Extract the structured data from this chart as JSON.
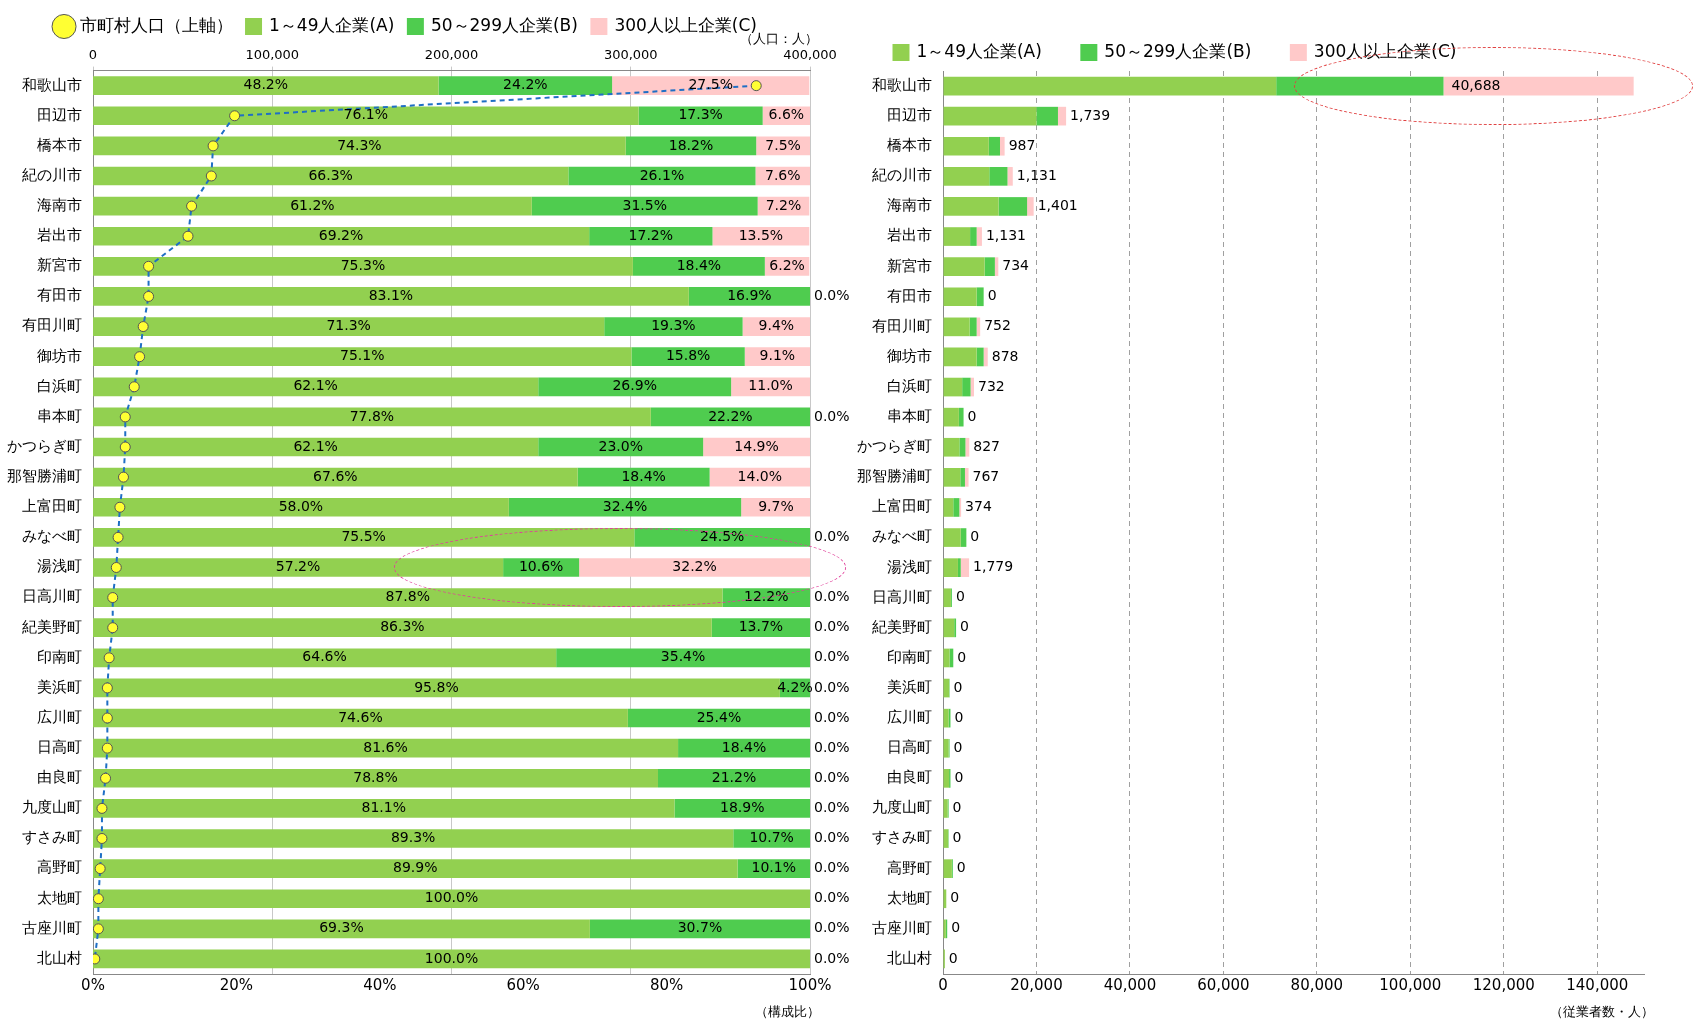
{
  "chart_data": [
    {
      "type": "bar",
      "orientation": "horizontal",
      "stacked": true,
      "categories": [
        "和歌山市",
        "田辺市",
        "橋本市",
        "紀の川市",
        "海南市",
        "岩出市",
        "新宮市",
        "有田市",
        "有田川町",
        "御坊市",
        "白浜町",
        "串本町",
        "かつらぎ町",
        "那智勝浦町",
        "上富田町",
        "みなべ町",
        "湯浅町",
        "日高川町",
        "紀美野町",
        "印南町",
        "美浜町",
        "広川町",
        "日高町",
        "由良町",
        "九度山町",
        "すさみ町",
        "高野町",
        "太地町",
        "古座川町",
        "北山村"
      ],
      "series": [
        {
          "name": "1～49人企業(A)",
          "color": "#92d050",
          "values": [
            48.2,
            76.1,
            74.3,
            66.3,
            61.2,
            69.2,
            75.3,
            83.1,
            71.3,
            75.1,
            62.1,
            77.8,
            62.1,
            67.6,
            58.0,
            75.5,
            57.2,
            87.8,
            86.3,
            64.6,
            95.8,
            74.6,
            81.6,
            78.8,
            81.1,
            89.3,
            89.9,
            100.0,
            69.3,
            100.0
          ],
          "value_labels": [
            "48.2%",
            "76.1%",
            "74.3%",
            "66.3%",
            "61.2%",
            "69.2%",
            "75.3%",
            "83.1%",
            "71.3%",
            "75.1%",
            "62.1%",
            "77.8%",
            "62.1%",
            "67.6%",
            "58.0%",
            "75.5%",
            "57.2%",
            "87.8%",
            "86.3%",
            "64.6%",
            "95.8%",
            "74.6%",
            "81.6%",
            "78.8%",
            "81.1%",
            "89.3%",
            "89.9%",
            "100.0%",
            "69.3%",
            "100.0%"
          ]
        },
        {
          "name": "50～299人企業(B)",
          "color": "#4fcc4f",
          "values": [
            24.2,
            17.3,
            18.2,
            26.1,
            31.5,
            17.2,
            18.4,
            16.9,
            19.3,
            15.8,
            26.9,
            22.2,
            23.0,
            18.4,
            32.4,
            24.5,
            10.6,
            12.2,
            13.7,
            35.4,
            4.2,
            25.4,
            18.4,
            21.2,
            18.9,
            10.7,
            10.1,
            0.0,
            30.7,
            0.0
          ],
          "value_labels": [
            "24.2%",
            "17.3%",
            "18.2%",
            "26.1%",
            "31.5%",
            "17.2%",
            "18.4%",
            "16.9%",
            "19.3%",
            "15.8%",
            "26.9%",
            "22.2%",
            "23.0%",
            "18.4%",
            "32.4%",
            "24.5%",
            "10.6%",
            "12.2%",
            "13.7%",
            "35.4%",
            "4.2%",
            "25.4%",
            "18.4%",
            "21.2%",
            "18.9%",
            "10.7%",
            "10.1%",
            null,
            "30.7%",
            null
          ]
        },
        {
          "name": "300人以上企業(C)",
          "color": "#ffc9c9",
          "values": [
            27.5,
            6.6,
            7.5,
            7.6,
            7.2,
            13.5,
            6.2,
            0.0,
            9.4,
            9.1,
            11.0,
            0.0,
            14.9,
            14.0,
            9.7,
            0.0,
            32.2,
            0.0,
            0.0,
            0.0,
            0.0,
            0.0,
            0.0,
            0.0,
            0.0,
            0.0,
            0.0,
            0.0,
            0.0,
            0.0
          ],
          "value_labels": [
            "27.5%",
            "6.6%",
            "7.5%",
            "7.6%",
            "7.2%",
            "13.5%",
            "6.2%",
            "0.0%",
            "9.4%",
            "9.1%",
            "11.0%",
            "0.0%",
            "14.9%",
            "14.0%",
            "9.7%",
            "0.0%",
            "32.2%",
            "0.0%",
            "0.0%",
            "0.0%",
            "0.0%",
            "0.0%",
            "0.0%",
            "0.0%",
            "0.0%",
            "0.0%",
            "0.0%",
            "0.0%",
            "0.0%",
            "0.0%"
          ]
        },
        {
          "name": "市町村人口（上軸）",
          "type": "line",
          "axis": "x2",
          "color": "#1f6fc5",
          "marker": "circle",
          "line_style": "dashed",
          "values": [
            370000,
            79000,
            67000,
            66000,
            55000,
            53000,
            31000,
            31000,
            28000,
            26000,
            23000,
            18000,
            18000,
            17000,
            15000,
            14000,
            13000,
            11000,
            11000,
            9000,
            8000,
            8000,
            8000,
            7000,
            5000,
            5000,
            4000,
            3000,
            3000,
            1000
          ]
        }
      ],
      "xlim": [
        0,
        100
      ],
      "xticks": [
        {
          "value": 0,
          "label": "0%"
        },
        {
          "value": 20,
          "label": "20%"
        },
        {
          "value": 40,
          "label": "40%"
        },
        {
          "value": 60,
          "label": "60%"
        },
        {
          "value": 80,
          "label": "80%"
        },
        {
          "value": 100,
          "label": "100%"
        }
      ],
      "x2lim": [
        0,
        400000
      ],
      "x2ticks": [
        0,
        {
          "value": 100000,
          "label": "100,000"
        },
        {
          "value": 200000,
          "label": "200,000"
        },
        {
          "value": 300000,
          "label": "300,000"
        },
        {
          "value": 400000,
          "label": "400,000"
        }
      ],
      "grid": "x2",
      "legend": "top",
      "annotations": [
        "（人口：人）",
        "（構成比）"
      ]
    },
    {
      "type": "bar",
      "orientation": "horizontal",
      "stacked": true,
      "categories": [
        "和歌山市",
        "田辺市",
        "橋本市",
        "紀の川市",
        "海南市",
        "岩出市",
        "新宮市",
        "有田市",
        "有田川町",
        "御坊市",
        "白浜町",
        "串本町",
        "かつらぎ町",
        "那智勝浦町",
        "上富田町",
        "みなべ町",
        "湯浅町",
        "日高川町",
        "紀美野町",
        "印南町",
        "美浜町",
        "広川町",
        "日高町",
        "由良町",
        "九度山町",
        "すさみ町",
        "高野町",
        "太地町",
        "古座川町",
        "北山村"
      ],
      "series": [
        {
          "name": "1～49人企業(A)",
          "color": "#92d050",
          "values": [
            71300,
            20000,
            9800,
            9900,
            11900,
            5800,
            8900,
            7200,
            5700,
            7200,
            4100,
            3400,
            3500,
            3700,
            2200,
            3800,
            3200,
            1700,
            2400,
            1400,
            1300,
            1200,
            1200,
            1300,
            1000,
            1100,
            1900,
            700,
            600,
            400
          ]
        },
        {
          "name": "50～299人企業(B)",
          "color": "#4fcc4f",
          "values": [
            35800,
            4600,
            2400,
            3900,
            6100,
            1400,
            2200,
            1500,
            1500,
            1500,
            1800,
            1000,
            1300,
            1000,
            1300,
            1200,
            600,
            200,
            400,
            800,
            100,
            400,
            200,
            300,
            200,
            100,
            200,
            0,
            300,
            0
          ]
        },
        {
          "name": "300人以上企業(C)",
          "color": "#ffc9c9",
          "values": [
            40688,
            1739,
            987,
            1131,
            1401,
            1131,
            734,
            0,
            752,
            878,
            732,
            0,
            827,
            767,
            374,
            0,
            1779,
            0,
            0,
            0,
            0,
            0,
            0,
            0,
            0,
            0,
            0,
            0,
            0,
            0
          ],
          "value_labels": [
            "40,688",
            "1,739",
            "987",
            "1,131",
            "1,401",
            "1,131",
            "734",
            "0",
            "752",
            "878",
            "732",
            "0",
            "827",
            "767",
            "374",
            "0",
            "1,779",
            "0",
            "0",
            "0",
            "0",
            "0",
            "0",
            "0",
            "0",
            "0",
            "0",
            "0",
            "0",
            "0"
          ]
        }
      ],
      "xlim": [
        0,
        150000
      ],
      "xticks": [
        0,
        {
          "value": 20000,
          "label": "20,000"
        },
        {
          "value": 40000,
          "label": "40,000"
        },
        {
          "value": 60000,
          "label": "60,000"
        },
        {
          "value": 80000,
          "label": "80,000"
        },
        {
          "value": 100000,
          "label": "100,000"
        },
        {
          "value": 120000,
          "label": "120,000"
        },
        {
          "value": 140000,
          "label": "140,000"
        }
      ],
      "grid": "x",
      "legend": "top left",
      "annotations": [
        "（従業者数・人）"
      ]
    }
  ]
}
